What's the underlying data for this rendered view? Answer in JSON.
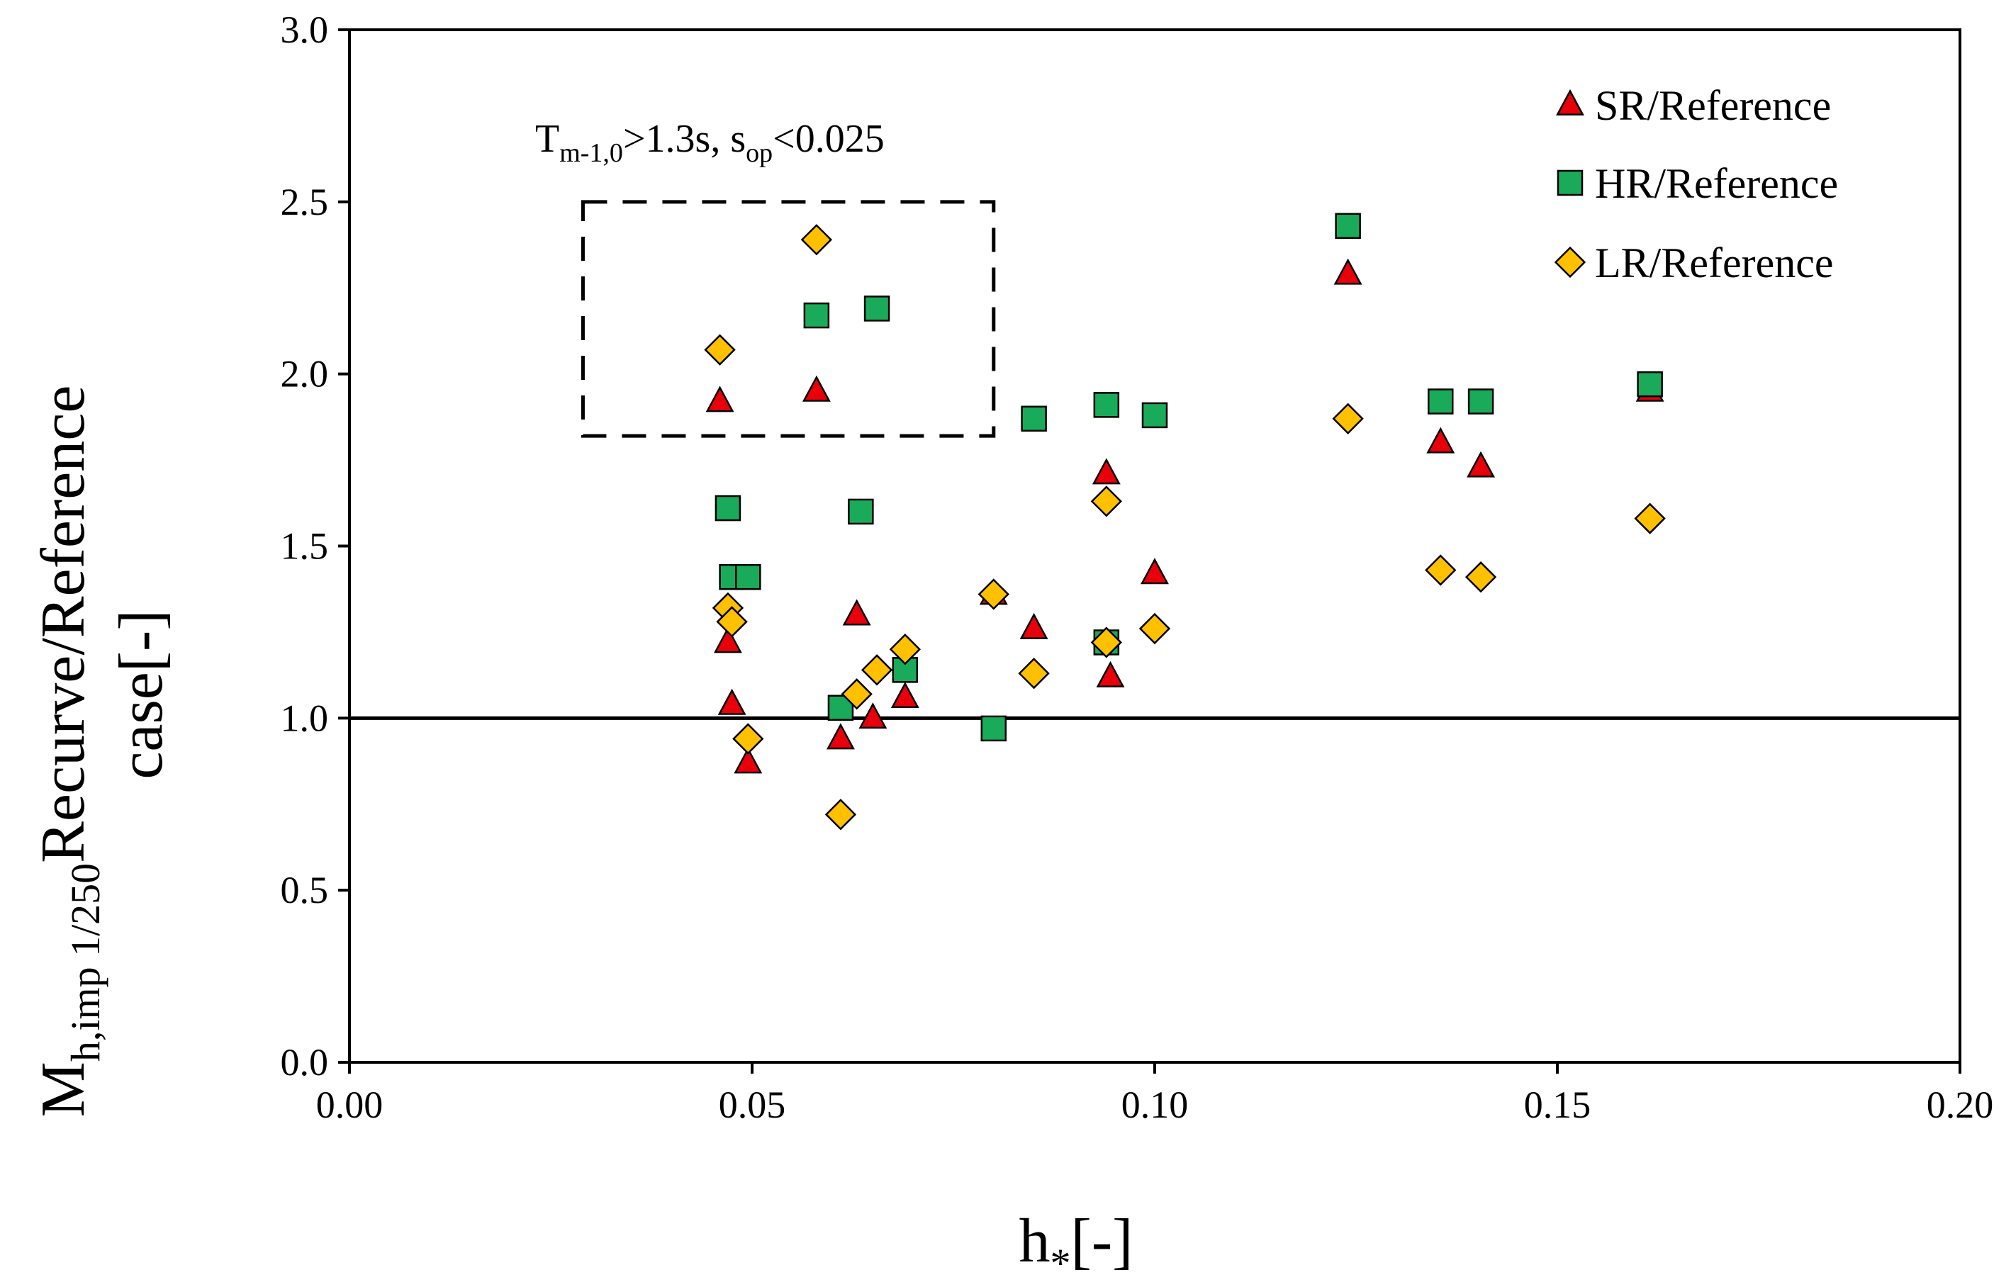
{
  "chart_data": {
    "type": "scatter",
    "xlabel": {
      "main": "h",
      "sub": "*",
      "tail": "[-]"
    },
    "ylabel": {
      "line1_main": "M",
      "line1_sub": "h,imp 1/250",
      "line1_tail": "Recurve/Reference",
      "line2": "case[-]"
    },
    "xlim": [
      0,
      0.2
    ],
    "ylim": [
      0,
      3.0
    ],
    "xticks": [
      "0.00",
      "0.05",
      "0.10",
      "0.15",
      "0.20"
    ],
    "yticks": [
      "0.0",
      "0.5",
      "1.0",
      "1.5",
      "2.0",
      "2.5",
      "3.0"
    ],
    "grid": false,
    "legend_position": "top-right",
    "reference_line": {
      "y": 1.0
    },
    "highlight_box": {
      "x_range": [
        0.029,
        0.08
      ],
      "y_range": [
        1.82,
        2.5
      ]
    },
    "annotation": {
      "parts": [
        {
          "t": "T",
          "k": "n"
        },
        {
          "t": "m-1,0",
          "k": "s"
        },
        {
          "t": ">1.3s, s",
          "k": "n"
        },
        {
          "t": "op",
          "k": "s"
        },
        {
          "t": "<0.025",
          "k": "n"
        }
      ]
    },
    "series": [
      {
        "name": "SR/Reference",
        "marker": "triangle",
        "color": "#e8000b",
        "points": [
          [
            0.046,
            1.92
          ],
          [
            0.058,
            1.95
          ],
          [
            0.047,
            1.22
          ],
          [
            0.0475,
            1.04
          ],
          [
            0.0495,
            0.87
          ],
          [
            0.061,
            0.94
          ],
          [
            0.063,
            1.3
          ],
          [
            0.065,
            1.0
          ],
          [
            0.069,
            1.06
          ],
          [
            0.08,
            1.36
          ],
          [
            0.085,
            1.26
          ],
          [
            0.094,
            1.71
          ],
          [
            0.0945,
            1.12
          ],
          [
            0.1,
            1.42
          ],
          [
            0.124,
            2.29
          ],
          [
            0.1355,
            1.8
          ],
          [
            0.1405,
            1.73
          ],
          [
            0.1615,
            1.95
          ]
        ]
      },
      {
        "name": "HR/Reference",
        "marker": "square",
        "color": "#1aab5a",
        "points": [
          [
            0.058,
            2.17
          ],
          [
            0.0655,
            2.19
          ],
          [
            0.047,
            1.61
          ],
          [
            0.0475,
            1.41
          ],
          [
            0.0495,
            1.41
          ],
          [
            0.0635,
            1.6
          ],
          [
            0.061,
            1.03
          ],
          [
            0.069,
            1.14
          ],
          [
            0.08,
            0.97
          ],
          [
            0.085,
            1.87
          ],
          [
            0.094,
            1.91
          ],
          [
            0.1,
            1.88
          ],
          [
            0.094,
            1.22
          ],
          [
            0.124,
            2.43
          ],
          [
            0.1355,
            1.92
          ],
          [
            0.1405,
            1.92
          ],
          [
            0.1615,
            1.97
          ]
        ]
      },
      {
        "name": "LR/Reference",
        "marker": "diamond",
        "color": "#ffc000",
        "points": [
          [
            0.046,
            2.07
          ],
          [
            0.058,
            2.39
          ],
          [
            0.047,
            1.32
          ],
          [
            0.0475,
            1.28
          ],
          [
            0.0495,
            0.94
          ],
          [
            0.061,
            0.72
          ],
          [
            0.063,
            1.07
          ],
          [
            0.0655,
            1.14
          ],
          [
            0.069,
            1.2
          ],
          [
            0.08,
            1.36
          ],
          [
            0.085,
            1.13
          ],
          [
            0.094,
            1.63
          ],
          [
            0.094,
            1.22
          ],
          [
            0.1,
            1.26
          ],
          [
            0.124,
            1.87
          ],
          [
            0.1355,
            1.43
          ],
          [
            0.1405,
            1.41
          ],
          [
            0.1615,
            1.58
          ]
        ]
      }
    ]
  }
}
